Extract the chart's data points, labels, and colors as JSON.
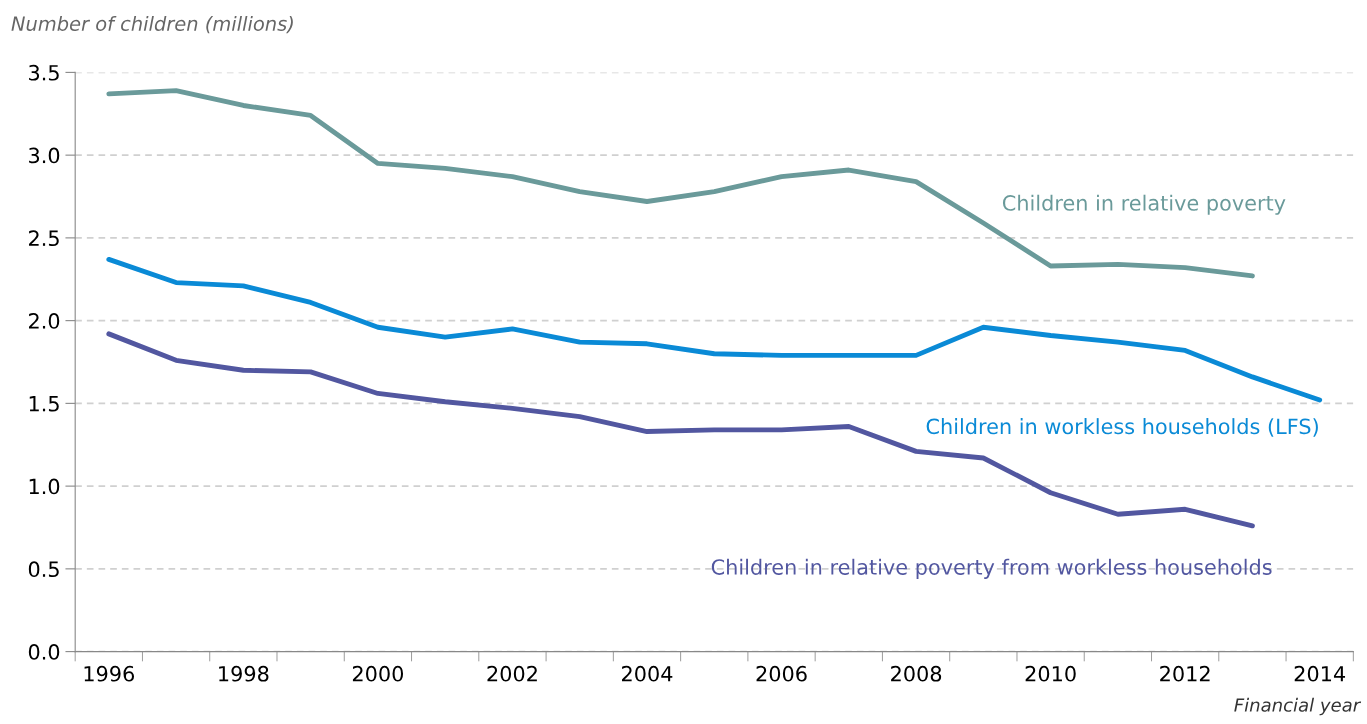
{
  "chart_data": {
    "type": "line",
    "ylabel": "Number of children (millions)",
    "xlabel": "Financial year",
    "categories": [
      "1996",
      null,
      "1998",
      null,
      "2000",
      null,
      "2002",
      null,
      "2004",
      null,
      "2006",
      null,
      "2008",
      null,
      "2010",
      null,
      "2012",
      null,
      "2014"
    ],
    "series": [
      {
        "name": "Children in relative poverty",
        "color": "#6a9a9a",
        "values": [
          3.37,
          3.39,
          3.3,
          3.24,
          2.95,
          2.92,
          2.87,
          2.78,
          2.72,
          2.78,
          2.87,
          2.91,
          2.84,
          2.59,
          2.33,
          2.34,
          2.32,
          2.27,
          null
        ]
      },
      {
        "name": "Children in workless households (LFS)",
        "color": "#0a8ad6",
        "values": [
          2.37,
          2.23,
          2.21,
          2.11,
          1.96,
          1.9,
          1.95,
          1.87,
          1.86,
          1.8,
          1.79,
          1.79,
          1.79,
          1.96,
          1.91,
          1.87,
          1.82,
          1.66,
          1.52
        ]
      },
      {
        "name": "Children in relative poverty from workless households",
        "color": "#5257a0",
        "values": [
          1.92,
          1.76,
          1.7,
          1.69,
          1.56,
          1.51,
          1.47,
          1.42,
          1.33,
          1.34,
          1.34,
          1.36,
          1.21,
          1.17,
          0.96,
          0.83,
          0.86,
          0.76,
          null
        ]
      }
    ],
    "ylim": [
      0,
      3.5
    ],
    "yticks": [
      {
        "value": 0,
        "label": "0.0"
      },
      {
        "value": 0.5,
        "label": "0.5"
      },
      {
        "value": 1,
        "label": "1.0"
      },
      {
        "value": 1.5,
        "label": "1.5"
      },
      {
        "value": 2,
        "label": "2.0"
      },
      {
        "value": 2.5,
        "label": "2.5"
      },
      {
        "value": 3,
        "label": "3.0"
      },
      {
        "value": 3.5,
        "label": "3.5"
      }
    ],
    "grid": "y",
    "legend": false
  }
}
